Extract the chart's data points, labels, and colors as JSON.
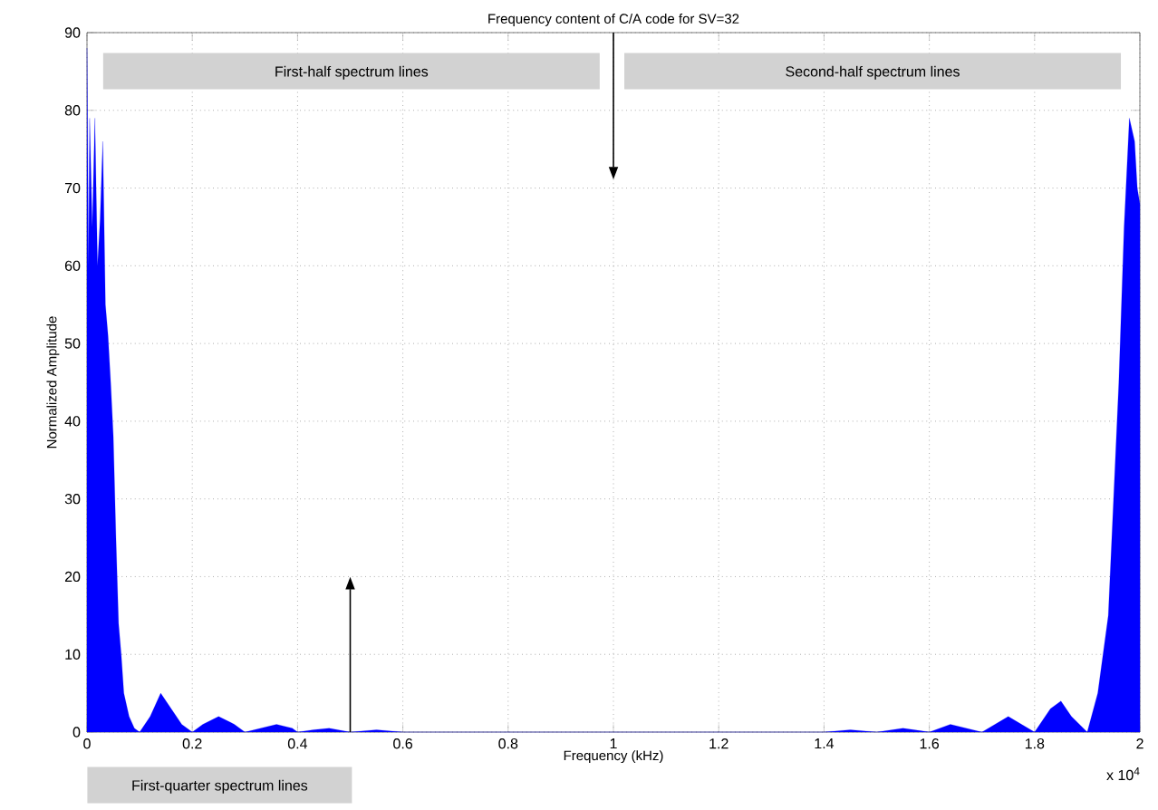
{
  "chart_data": {
    "type": "area",
    "title": "Frequency content of C/A code for SV=32",
    "xlabel": "Frequency (kHz)",
    "ylabel": "Normalized Amplitude",
    "x": [
      0,
      0.003,
      0.005,
      0.01,
      0.015,
      0.02,
      0.025,
      0.03,
      0.035,
      0.04,
      0.045,
      0.05,
      0.055,
      0.06,
      0.065,
      0.07,
      0.08,
      0.09,
      0.1,
      0.12,
      0.14,
      0.15,
      0.16,
      0.18,
      0.2,
      0.22,
      0.25,
      0.28,
      0.3,
      0.33,
      0.36,
      0.39,
      0.4,
      0.43,
      0.46,
      0.5,
      0.55,
      0.6,
      1.4,
      1.45,
      1.5,
      1.55,
      1.6,
      1.64,
      1.7,
      1.75,
      1.8,
      1.83,
      1.85,
      1.87,
      1.9,
      1.92,
      1.94,
      1.95,
      1.96,
      1.97,
      1.98,
      1.99,
      1.995,
      2.0
    ],
    "series": [
      {
        "color": "#0000ff",
        "values": [
          88,
          60,
          79,
          65,
          79,
          60,
          66,
          76,
          55,
          51,
          45,
          38,
          25,
          14,
          10,
          5,
          2,
          0.5,
          0,
          2,
          5,
          4,
          3,
          1,
          0,
          1,
          2,
          1,
          0,
          0.5,
          1,
          0.5,
          0,
          0.3,
          0.5,
          0,
          0.3,
          0,
          0,
          0.3,
          0,
          0.5,
          0,
          1,
          0,
          2,
          0,
          3,
          4,
          2,
          0,
          5,
          15,
          30,
          45,
          65,
          79,
          76,
          70,
          68
        ]
      }
    ],
    "xlim": [
      0,
      2
    ],
    "xticks": [
      0,
      0.2,
      0.4,
      0.6,
      0.8,
      1,
      1.2,
      1.4,
      1.6,
      1.8,
      2
    ],
    "ylim": [
      0,
      90
    ],
    "yticks": [
      0,
      10,
      20,
      30,
      40,
      50,
      60,
      70,
      80,
      90
    ],
    "grid": true,
    "annotations": [
      "First-half spectrum lines",
      "Second-half spectrum lines",
      "First-quarter spectrum lines",
      "x 10$^{4}$"
    ]
  }
}
